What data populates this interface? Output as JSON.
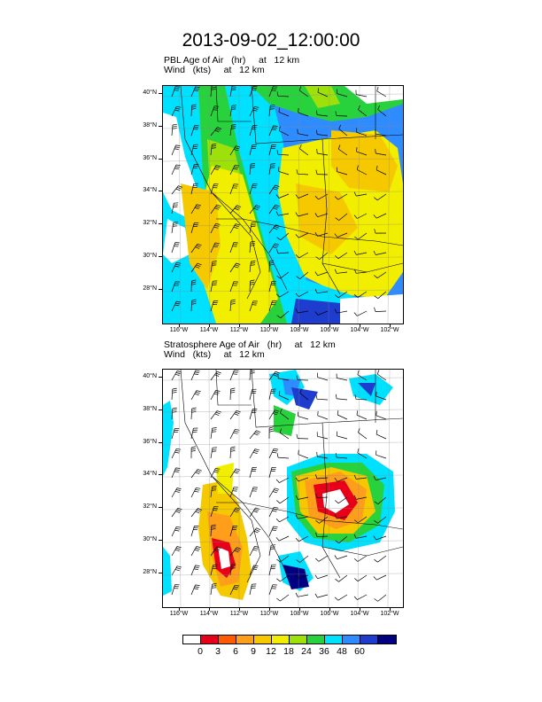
{
  "title": "2013-09-02_12:00:00",
  "panels": [
    {
      "title_line1": "PBL Age of Air   (hr)     at   12 km",
      "title_line2": "Wind   (kts)     at   12 km"
    },
    {
      "title_line1": "Stratosphere Age of Air   (hr)     at   12 km",
      "title_line2": "Wind   (kts)     at   12 km"
    }
  ],
  "lat_labels": [
    "40°N",
    "38°N",
    "36°N",
    "34°N",
    "32°N",
    "30°N",
    "28°N"
  ],
  "lon_labels": [
    "116°W",
    "114°W",
    "112°W",
    "110°W",
    "108°W",
    "106°W",
    "104°W",
    "102°W"
  ],
  "colorbar": {
    "labels": [
      "0",
      "3",
      "6",
      "9",
      "12",
      "18",
      "24",
      "36",
      "48",
      "60"
    ],
    "colors": [
      "#ffffff",
      "#e8001a",
      "#ff5a00",
      "#ff9e1a",
      "#f5c800",
      "#f2ee00",
      "#9ee00a",
      "#28d23c",
      "#00e0ff",
      "#2f8cff",
      "#1e3ccd",
      "#000080"
    ]
  }
}
